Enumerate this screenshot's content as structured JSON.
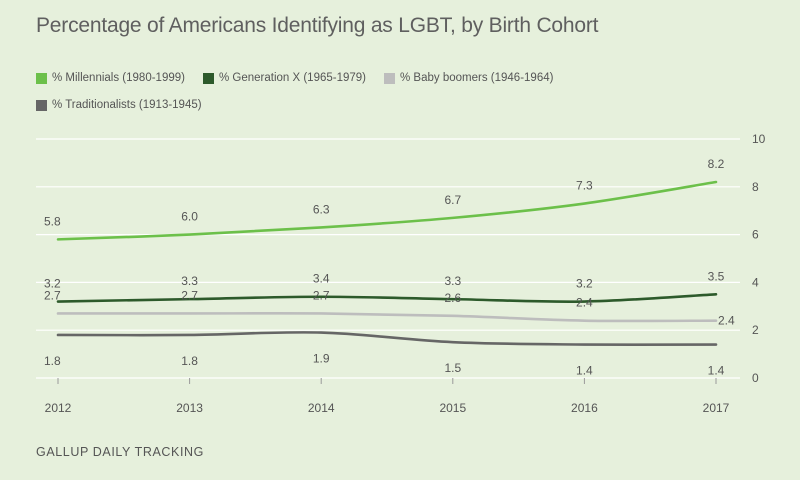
{
  "chart_data": {
    "type": "line",
    "title": "Percentage of Americans Identifying as LGBT, by Birth Cohort",
    "categories": [
      "2012",
      "2013",
      "2014",
      "2015",
      "2016",
      "2017"
    ],
    "ylim": [
      0,
      10
    ],
    "yticks": [
      "0",
      "2",
      "4",
      "6",
      "8",
      "10"
    ],
    "grid": true,
    "legend_position": "top-left",
    "series": [
      {
        "name": "% Millennials (1980-1999)",
        "color": "#6cc04a",
        "values": [
          5.8,
          6.0,
          6.3,
          6.7,
          7.3,
          8.2
        ],
        "labels": [
          "5.8",
          "6.0",
          "6.3",
          "6.7",
          "7.3",
          "8.2"
        ]
      },
      {
        "name": "% Generation X (1965-1979)",
        "color": "#2d5a2b",
        "values": [
          3.2,
          3.3,
          3.4,
          3.3,
          3.2,
          3.5
        ],
        "labels": [
          "3.2",
          "3.3",
          "3.4",
          "3.3",
          "3.2",
          "3.5"
        ]
      },
      {
        "name": "% Baby boomers (1946-1964)",
        "color": "#bdbdbd",
        "values": [
          2.7,
          2.7,
          2.7,
          2.6,
          2.4,
          2.4
        ],
        "labels": [
          "2.7",
          "2.7",
          "2.7",
          "2.6",
          "2.4",
          "2.4"
        ]
      },
      {
        "name": "% Traditionalists (1913-1945)",
        "color": "#666666",
        "values": [
          1.8,
          1.8,
          1.9,
          1.5,
          1.4,
          1.4
        ],
        "labels": [
          "1.8",
          "1.8",
          "1.9",
          "1.5",
          "1.4",
          "1.4"
        ]
      }
    ],
    "source": "GALLUP DAILY TRACKING"
  }
}
